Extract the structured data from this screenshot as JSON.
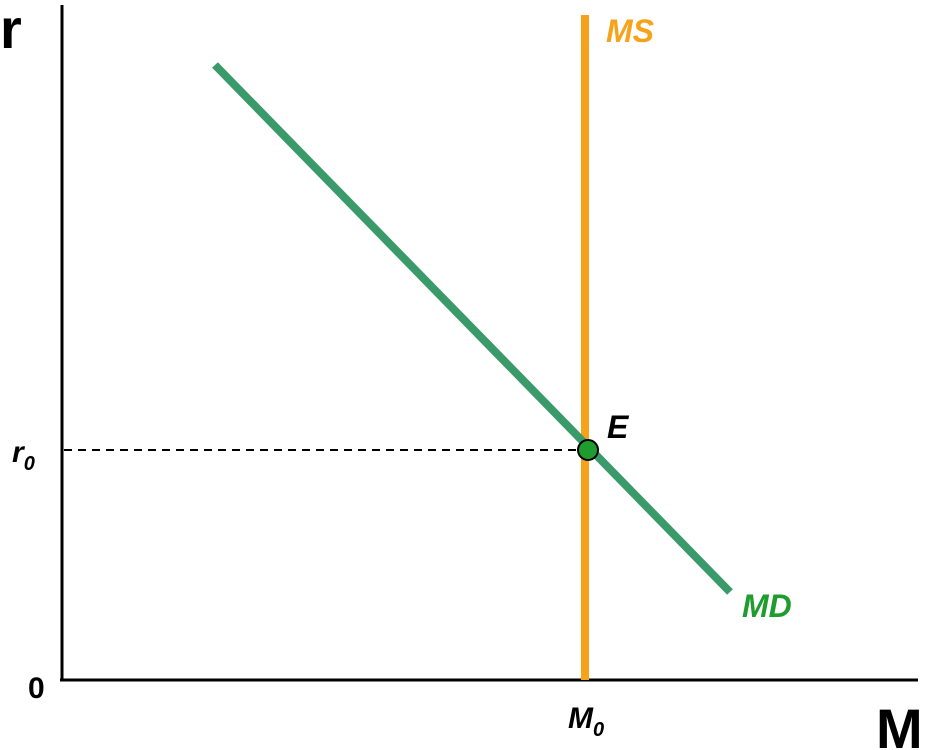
{
  "axes": {
    "y_label": "r",
    "x_label": "M",
    "origin_label": "0"
  },
  "equilibrium": {
    "label": "E",
    "r_label": {
      "base": "r",
      "sub": "0"
    },
    "m_label": {
      "base": "M",
      "sub": "0"
    }
  },
  "curves": {
    "supply": "MS",
    "demand": "MD"
  }
}
